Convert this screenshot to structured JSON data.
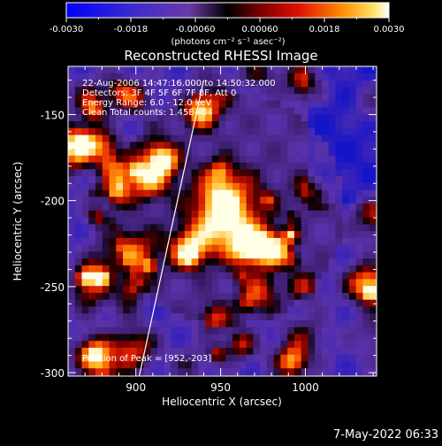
{
  "colorbar": {
    "tick_labels": [
      "-0.0030",
      "-0.0018",
      "-0.00060",
      "0.00060",
      "0.0018",
      "0.0030"
    ],
    "units": "(photons cm⁻² s⁻¹ asec⁻²)",
    "range": [
      -0.003,
      0.003
    ]
  },
  "chart_data": {
    "type": "heatmap",
    "title": "Reconstructed RHESSI Image",
    "xlabel": "Heliocentric X (arcsec)",
    "ylabel": "Heliocentric Y (arcsec)",
    "xlim": [
      860,
      1042
    ],
    "ylim": [
      -302,
      -122
    ],
    "x_ticks": [
      900,
      950,
      1000
    ],
    "y_ticks": [
      -150,
      -200,
      -250,
      -300
    ],
    "peak": [
      952,
      -203
    ],
    "annotations": [
      "22-Aug-2006 14:47:16.000 to 14:50:32.000",
      "Detectors: 3F 4F 5F 6F 7F 8F, Att 0",
      "Energy Range: 6.0 - 12.0 keV",
      "Clean     Total counts: 1.45E+04"
    ],
    "peak_label": "Position of Peak = [952,-203]",
    "limb_line": {
      "x1": 902,
      "y1": -302,
      "x2": 940,
      "y2": -130
    }
  },
  "footer": {
    "date": "7-May-2022 06:33"
  }
}
